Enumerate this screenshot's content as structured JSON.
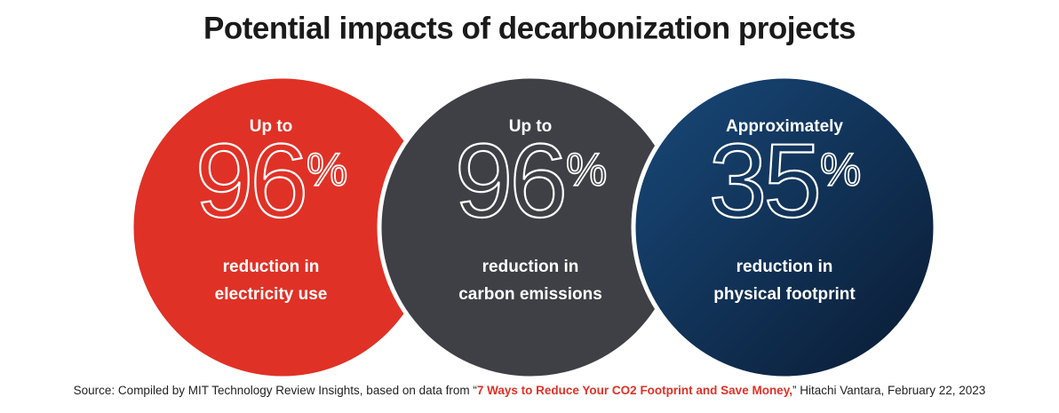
{
  "header": {
    "title": "Potential impacts of decarbonization projects"
  },
  "items": [
    {
      "qualifier": "Up to",
      "value": "96",
      "unit": "%",
      "description": [
        "reduction in",
        "electricity use"
      ]
    },
    {
      "qualifier": "Up to",
      "value": "96",
      "unit": "%",
      "description": [
        "reduction in",
        "carbon emissions"
      ]
    },
    {
      "qualifier": "Approximately",
      "value": "35",
      "unit": "%",
      "description": [
        "reduction in",
        "physical footprint"
      ]
    }
  ],
  "source": {
    "prefix": "Source: Compiled by MIT Technology Review Insights, based on data from “",
    "link": "7 Ways to Reduce Your CO2 Footprint and Save Money,",
    "suffix": "” Hitachi Vantara, February 22, 2023"
  }
}
